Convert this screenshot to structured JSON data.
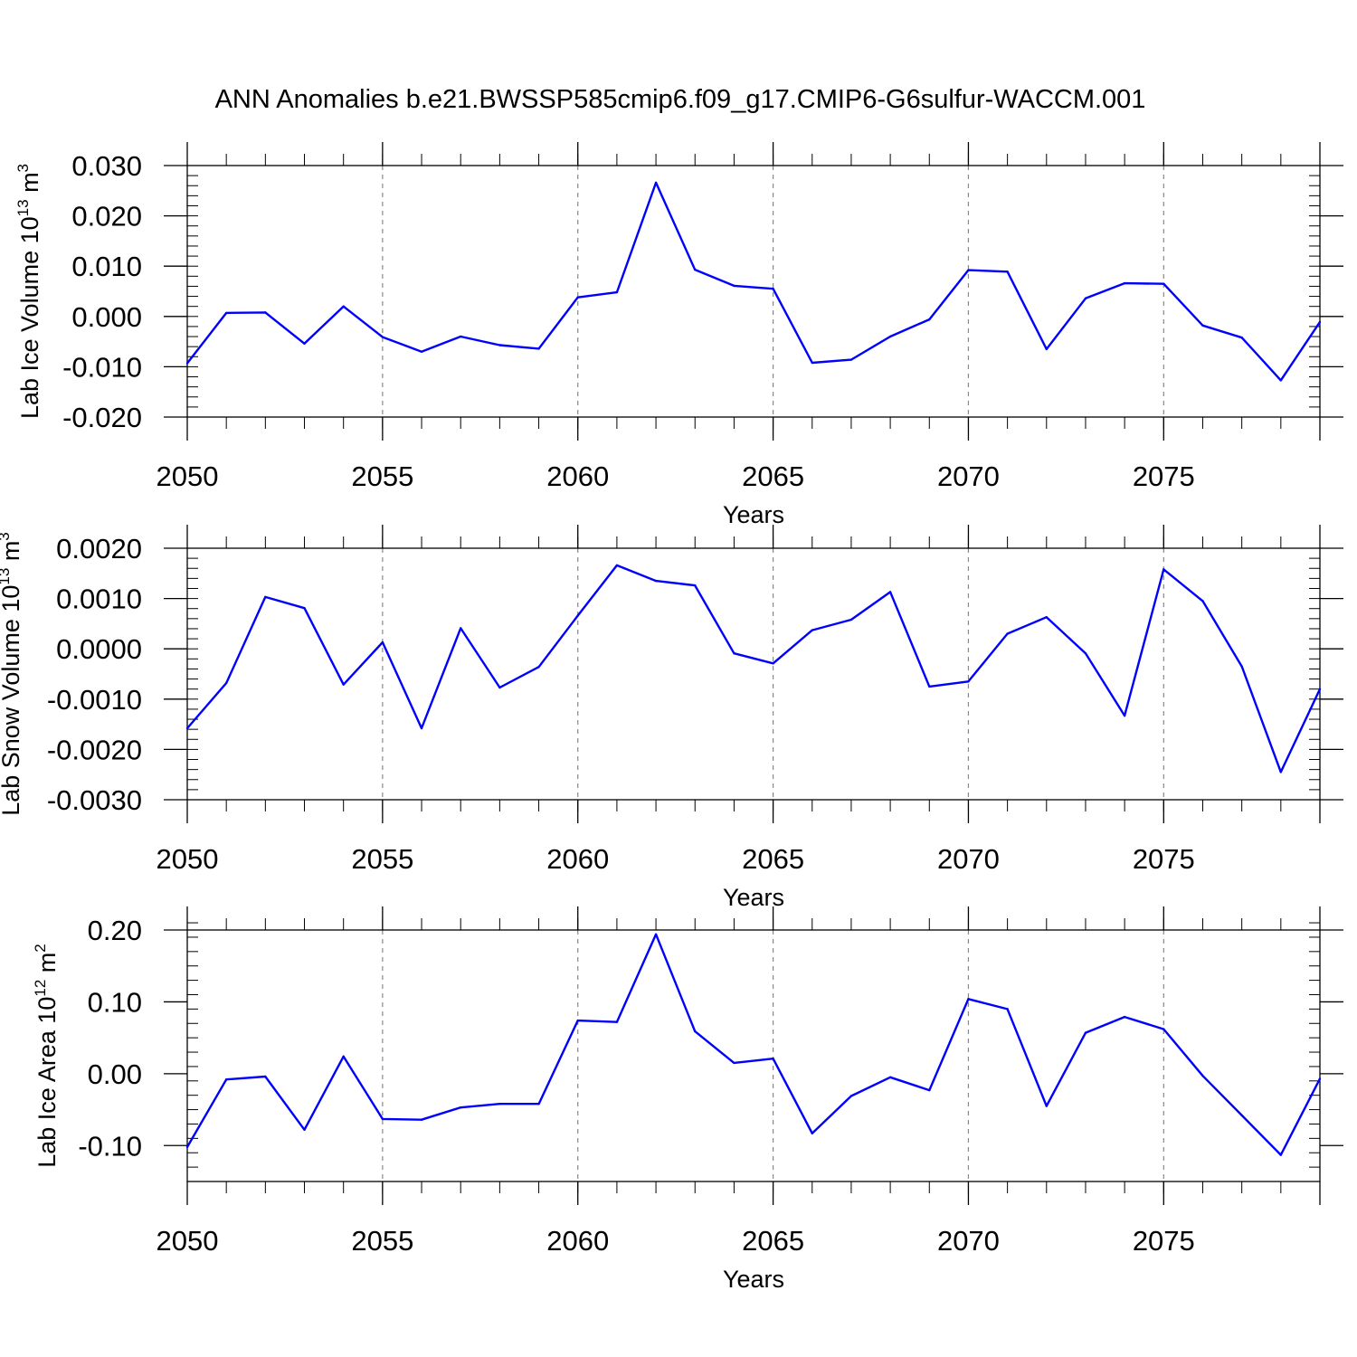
{
  "title": "ANN Anomalies b.e21.BWSSP585cmip6.f09_g17.CMIP6-G6sulfur-WACCM.001",
  "line_color": "#0000ff",
  "grid_color": "#888888",
  "chart_data": [
    {
      "type": "line",
      "name": "Lab Ice Volume",
      "ylabel_main": "Lab Ice Volume 10",
      "ylabel_exp": "13",
      "ylabel_unit": " m",
      "ylabel_unit_exp": "3",
      "xlabel": "Years",
      "xlim": [
        2050,
        2079
      ],
      "ylim": [
        -0.02,
        0.03
      ],
      "yticks": [
        -0.02,
        -0.01,
        0.0,
        0.01,
        0.02,
        0.03
      ],
      "ytick_labels": [
        "-0.020",
        "-0.010",
        "0.000",
        "0.010",
        "0.020",
        "0.030"
      ],
      "yminor_step": 0.002,
      "xticks": [
        2050,
        2055,
        2060,
        2065,
        2070,
        2075
      ],
      "xtick_labels": [
        "2050",
        "2055",
        "2060",
        "2065",
        "2070",
        "2075"
      ],
      "grid_x": [
        2055,
        2060,
        2065,
        2070,
        2075
      ],
      "x": [
        2050,
        2051,
        2052,
        2053,
        2054,
        2055,
        2056,
        2057,
        2058,
        2059,
        2060,
        2061,
        2062,
        2063,
        2064,
        2065,
        2066,
        2067,
        2068,
        2069,
        2070,
        2071,
        2072,
        2073,
        2074,
        2075,
        2076,
        2077,
        2078,
        2079
      ],
      "y": [
        -0.0093,
        0.0007,
        0.0008,
        -0.0054,
        0.002,
        -0.0041,
        -0.007,
        -0.004,
        -0.0057,
        -0.0064,
        0.0038,
        0.0048,
        0.0266,
        0.0093,
        0.0061,
        0.0055,
        -0.0092,
        -0.0086,
        -0.004,
        -0.0006,
        0.0092,
        0.0089,
        -0.0065,
        0.0036,
        0.0066,
        0.0065,
        -0.0018,
        -0.0042,
        -0.0127,
        -0.0011
      ]
    },
    {
      "type": "line",
      "name": "Lab Snow Volume",
      "ylabel_main": "Lab Snow Volume 10",
      "ylabel_exp": "13",
      "ylabel_unit": " m",
      "ylabel_unit_exp": "3",
      "xlabel": "Years",
      "xlim": [
        2050,
        2079
      ],
      "ylim": [
        -0.003,
        0.002
      ],
      "yticks": [
        -0.003,
        -0.002,
        -0.001,
        0.0,
        0.001,
        0.002
      ],
      "ytick_labels": [
        "-0.0030",
        "-0.0020",
        "-0.0010",
        "0.0000",
        "0.0010",
        "0.0020"
      ],
      "yminor_step": 0.0002,
      "xticks": [
        2050,
        2055,
        2060,
        2065,
        2070,
        2075
      ],
      "xtick_labels": [
        "2050",
        "2055",
        "2060",
        "2065",
        "2070",
        "2075"
      ],
      "grid_x": [
        2055,
        2060,
        2065,
        2070,
        2075
      ],
      "x": [
        2050,
        2051,
        2052,
        2053,
        2054,
        2055,
        2056,
        2057,
        2058,
        2059,
        2060,
        2061,
        2062,
        2063,
        2064,
        2065,
        2066,
        2067,
        2068,
        2069,
        2070,
        2071,
        2072,
        2073,
        2074,
        2075,
        2076,
        2077,
        2078,
        2079
      ],
      "y": [
        -0.00158,
        -0.00068,
        0.00103,
        0.00081,
        -0.00071,
        0.00013,
        -0.00158,
        0.00041,
        -0.00077,
        -0.00036,
        0.00066,
        0.00166,
        0.00135,
        0.00126,
        -9e-05,
        -0.00029,
        0.00037,
        0.00058,
        0.00113,
        -0.00075,
        -0.00065,
        0.0003,
        0.00063,
        -9e-05,
        -0.00133,
        0.00158,
        0.00095,
        -0.00035,
        -0.00245,
        -0.0008
      ]
    },
    {
      "type": "line",
      "name": "Lab Ice Area",
      "ylabel_main": "Lab Ice Area 10",
      "ylabel_exp": "12",
      "ylabel_unit": " m",
      "ylabel_unit_exp": "2",
      "xlabel": "Years",
      "xlim": [
        2050,
        2079
      ],
      "ylim": [
        -0.15,
        0.2
      ],
      "yticks": [
        -0.1,
        0.0,
        0.1,
        0.2
      ],
      "ytick_labels": [
        "-0.10",
        "0.00",
        "0.10",
        "0.20"
      ],
      "yminor_step": 0.02,
      "xticks": [
        2050,
        2055,
        2060,
        2065,
        2070,
        2075
      ],
      "xtick_labels": [
        "2050",
        "2055",
        "2060",
        "2065",
        "2070",
        "2075"
      ],
      "grid_x": [
        2055,
        2060,
        2065,
        2070,
        2075
      ],
      "x": [
        2050,
        2051,
        2052,
        2053,
        2054,
        2055,
        2056,
        2057,
        2058,
        2059,
        2060,
        2061,
        2062,
        2063,
        2064,
        2065,
        2066,
        2067,
        2068,
        2069,
        2070,
        2071,
        2072,
        2073,
        2074,
        2075,
        2076,
        2077,
        2078,
        2079
      ],
      "y": [
        -0.102,
        -0.008,
        -0.004,
        -0.078,
        0.024,
        -0.063,
        -0.064,
        -0.047,
        -0.042,
        -0.042,
        0.074,
        0.072,
        0.194,
        0.059,
        0.015,
        0.021,
        -0.083,
        -0.031,
        -0.005,
        -0.023,
        0.104,
        0.09,
        -0.045,
        0.057,
        0.079,
        0.062,
        -0.003,
        -0.058,
        -0.113,
        -0.007
      ]
    }
  ]
}
